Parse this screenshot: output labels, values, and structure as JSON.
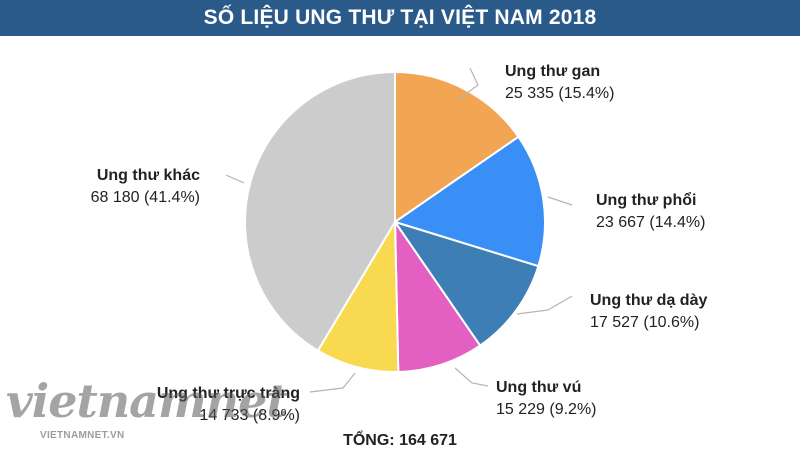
{
  "header": {
    "title": "SỐ LIỆU UNG THƯ TẠI VIỆT NAM 2018"
  },
  "total_label": "TỔNG: 164 671",
  "watermark": {
    "logo": "vietnamnet",
    "site": "VIETNAMNET.VN"
  },
  "chart_data": {
    "type": "pie",
    "title": "SỐ LIỆU UNG THƯ TẠI VIỆT NAM 2018",
    "start_angle_deg": 0,
    "direction": "clockwise",
    "slices": [
      {
        "name": "Ung thư gan",
        "value": 25335,
        "label": "25 335 (15.4%)",
        "color": "#f2a553"
      },
      {
        "name": "Ung thư phổi",
        "value": 23667,
        "label": "23 667 (14.4%)",
        "color": "#3a8ff7"
      },
      {
        "name": "Ung thư dạ dày",
        "value": 17527,
        "label": "17 527 (10.6%)",
        "color": "#3d7fb5"
      },
      {
        "name": "Ung thư vú",
        "value": 15229,
        "label": "15 229 (9.2%)",
        "color": "#e35fc2"
      },
      {
        "name": "Ung thư trực tràng",
        "value": 14733,
        "label": "14 733 (8.9%)",
        "color": "#f8d94f"
      },
      {
        "name": "Ung thư khác",
        "value": 68180,
        "label": "68 180 (41.4%)",
        "color": "#cccccc"
      }
    ],
    "total": 164671,
    "total_label": "TỔNG: 164 671"
  }
}
